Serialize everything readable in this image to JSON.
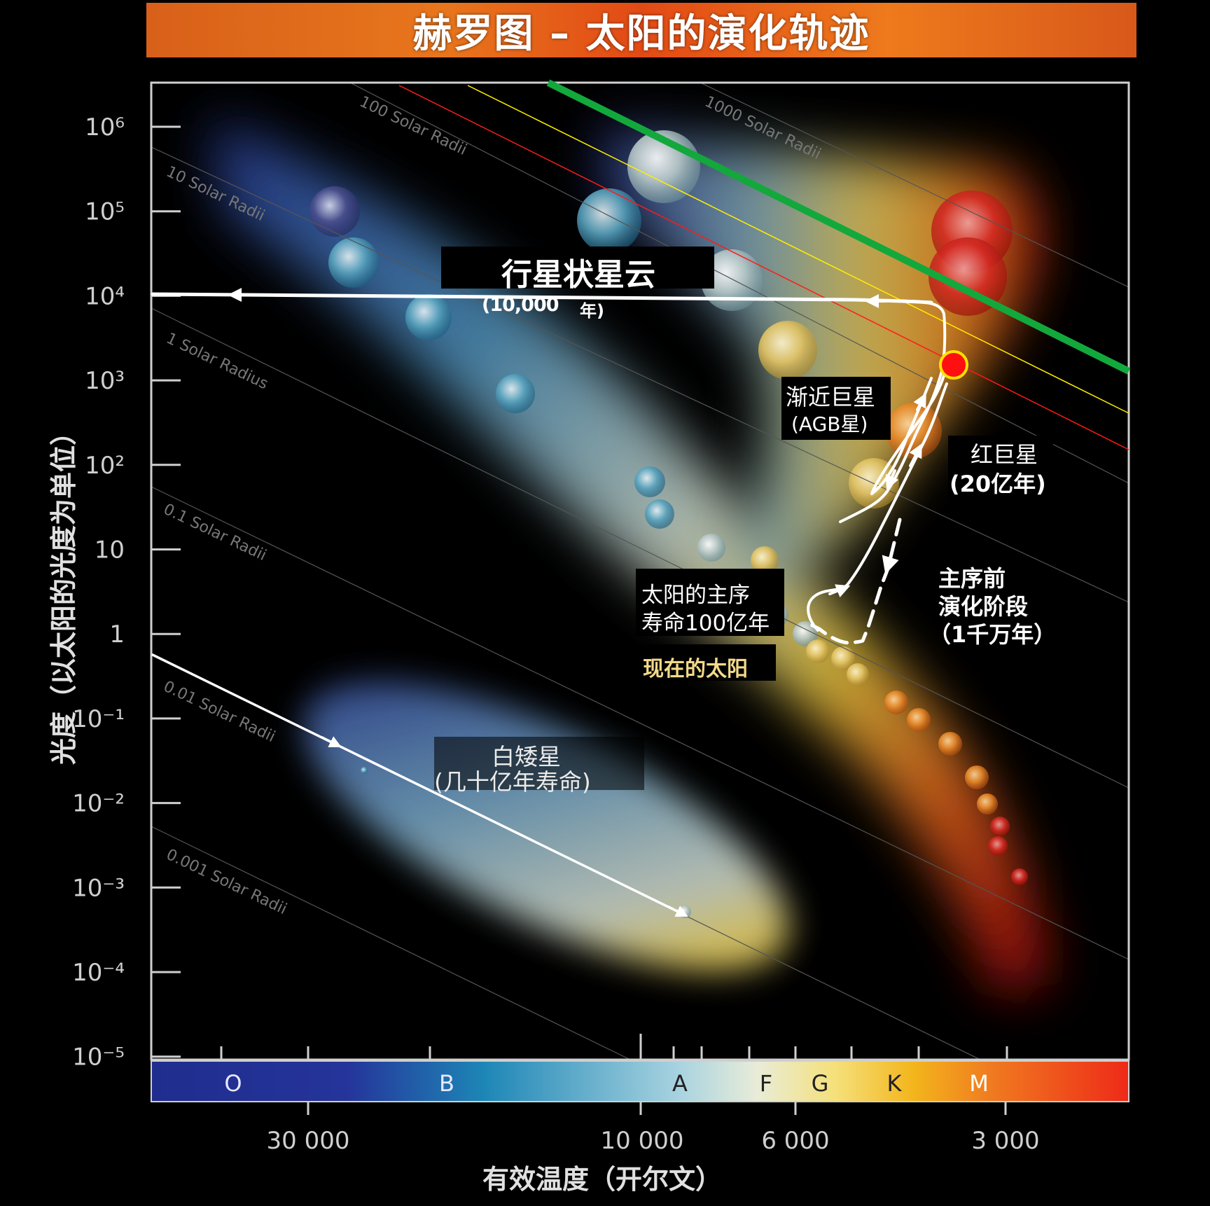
{
  "title": "赫罗图 – 太阳的演化轨迹",
  "y_axis": {
    "label": "光度（以太阳的光度为单位）",
    "ticks": [
      "10⁶",
      "10⁵",
      "10⁴",
      "10³",
      "10²",
      "10",
      "1",
      "10⁻¹",
      "10⁻²",
      "10⁻³",
      "10⁻⁴",
      "10⁻⁵"
    ]
  },
  "x_axis": {
    "label": "有效温度（开尔文）",
    "ticks": [
      "30 000",
      "10 000",
      "6 000",
      "3 000"
    ]
  },
  "spectral_classes": [
    "O",
    "B",
    "A",
    "F",
    "G",
    "K",
    "M"
  ],
  "radius_lines": [
    "1000 Solar Radii",
    "100 Solar Radii",
    "10 Solar Radii",
    "1 Solar Radius",
    "0.1 Solar Radii",
    "0.01 Solar Radii",
    "0.001 Solar Radii"
  ],
  "annotations": {
    "planetary_nebula": "行星状星云",
    "planetary_nebula_time_value": "(10,000",
    "planetary_nebula_time_unit": "年)",
    "agb_line1": "渐近巨星",
    "agb_line2": "(AGB星)",
    "red_giant_line1": "红巨星",
    "red_giant_line2": "(20亿年)",
    "main_seq_line1": "太阳的主序",
    "main_seq_line2": "寿命100亿年",
    "current_sun": "现在的太阳",
    "pre_ms_line1": "主序前",
    "pre_ms_line2": "演化阶段",
    "pre_ms_line3": "（1千万年）",
    "white_dwarf_line1": "白矮星",
    "white_dwarf_line2": "(几十亿年寿命)"
  },
  "colors": {
    "limit_green": "#13a83c",
    "limit_yellow": "#ffee00",
    "limit_red": "#ff1a1a",
    "marker_fill": "#ff1010",
    "marker_ring": "#ffe000",
    "current_sun_text": "#f3d98a"
  }
}
